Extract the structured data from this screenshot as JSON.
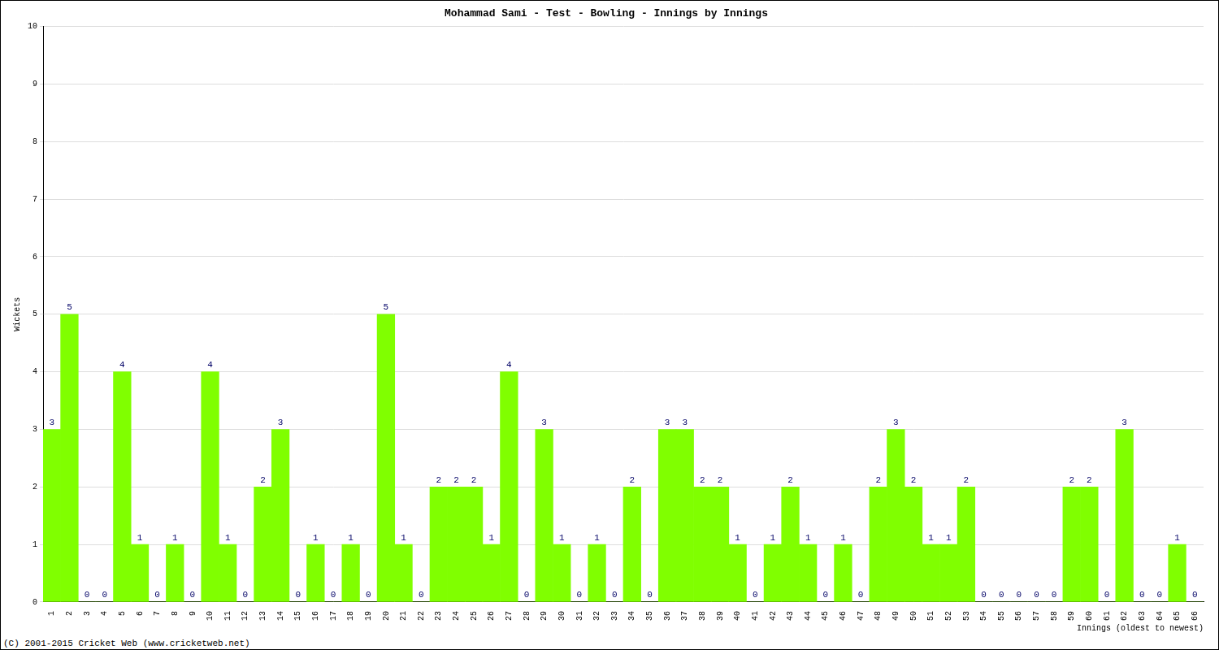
{
  "chart_data": {
    "type": "bar",
    "title": "Mohammad Sami - Test - Bowling - Innings by Innings",
    "x_label": "Innings (oldest to newest)",
    "y_label": "Wickets",
    "footer": "(C) 2001-2015 Cricket Web (www.cricketweb.net)",
    "categories": [
      "1",
      "2",
      "3",
      "4",
      "5",
      "6",
      "7",
      "8",
      "9",
      "10",
      "11",
      "12",
      "13",
      "14",
      "15",
      "16",
      "17",
      "18",
      "19",
      "20",
      "21",
      "22",
      "23",
      "24",
      "25",
      "26",
      "27",
      "28",
      "29",
      "30",
      "31",
      "32",
      "33",
      "34",
      "35",
      "36",
      "37",
      "38",
      "39",
      "40",
      "41",
      "42",
      "43",
      "44",
      "45",
      "46",
      "47",
      "48",
      "49",
      "50",
      "51",
      "52",
      "53",
      "54",
      "55",
      "56",
      "57",
      "58",
      "59",
      "60",
      "61",
      "62",
      "63",
      "64",
      "65",
      "66"
    ],
    "values": [
      3,
      5,
      0,
      0,
      4,
      1,
      0,
      1,
      0,
      4,
      1,
      0,
      2,
      3,
      0,
      1,
      0,
      1,
      0,
      5,
      1,
      0,
      2,
      2,
      2,
      1,
      4,
      0,
      3,
      1,
      0,
      1,
      0,
      2,
      0,
      3,
      3,
      2,
      2,
      1,
      0,
      1,
      2,
      1,
      0,
      1,
      0,
      2,
      3,
      2,
      1,
      1,
      2,
      0,
      0,
      0,
      0,
      0,
      2,
      2,
      0,
      3,
      0,
      0,
      1,
      0
    ],
    "color": "#80ff00",
    "ylim": [
      0,
      10
    ],
    "yticks": [
      0,
      1,
      2,
      3,
      4,
      5,
      6,
      7,
      8,
      9,
      10
    ],
    "grid": true,
    "data_labels": true
  }
}
